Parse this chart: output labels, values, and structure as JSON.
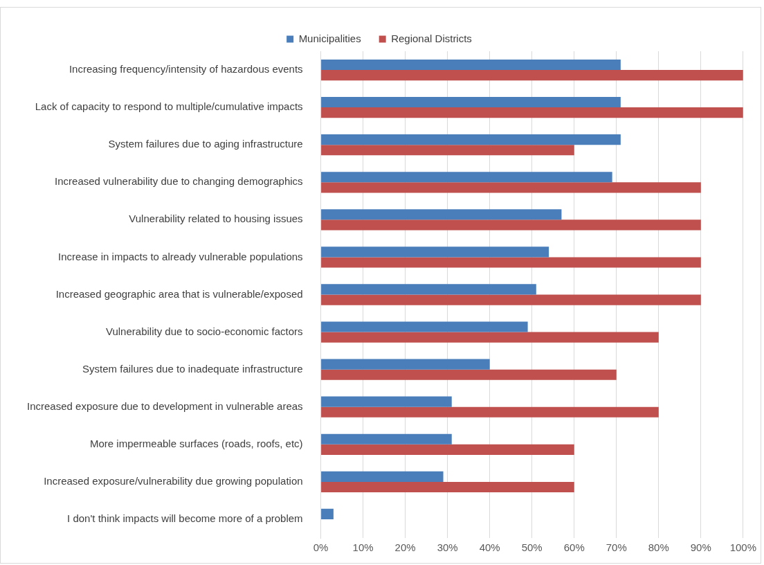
{
  "chart_data": {
    "type": "bar",
    "orientation": "horizontal",
    "categories": [
      "Increasing frequency/intensity of hazardous events",
      "Lack of capacity to respond to multiple/cumulative impacts",
      "System failures due to aging infrastructure",
      "Increased vulnerability due to changing demographics",
      "Vulnerability related to housing issues",
      "Increase in impacts to already vulnerable populations",
      "Increased geographic area that is vulnerable/exposed",
      "Vulnerability due to socio-economic factors",
      "System failures due to inadequate infrastructure",
      "Increased exposure due to development in vulnerable areas",
      "More impermeable surfaces (roads, roofs, etc)",
      "Increased exposure/vulnerability due growing population",
      "I don't think impacts will become more of a problem"
    ],
    "series": [
      {
        "name": "Municipalities",
        "color": "#4a7ebb",
        "values": [
          71,
          71,
          71,
          69,
          57,
          54,
          51,
          49,
          40,
          31,
          31,
          29,
          3
        ]
      },
      {
        "name": "Regional Districts",
        "color": "#c0504d",
        "values": [
          100,
          100,
          60,
          90,
          90,
          90,
          90,
          80,
          70,
          80,
          60,
          60,
          null
        ]
      }
    ],
    "xlim": [
      0,
      100
    ],
    "xticks": [
      {
        "value": 0,
        "label": "0%"
      },
      {
        "value": 10,
        "label": "10%"
      },
      {
        "value": 20,
        "label": "20%"
      },
      {
        "value": 30,
        "label": "30%"
      },
      {
        "value": 40,
        "label": "40%"
      },
      {
        "value": 50,
        "label": "50%"
      },
      {
        "value": 60,
        "label": "60%"
      },
      {
        "value": 70,
        "label": "70%"
      },
      {
        "value": 80,
        "label": "80%"
      },
      {
        "value": 90,
        "label": "90%"
      },
      {
        "value": 100,
        "label": "100%"
      }
    ],
    "grid": "x",
    "legend": "top"
  }
}
